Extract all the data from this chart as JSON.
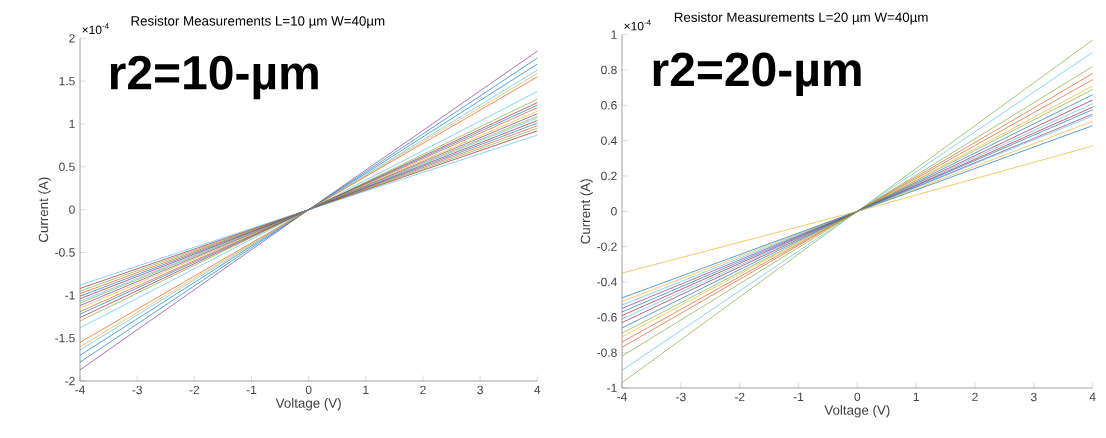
{
  "chart_data": [
    {
      "type": "line",
      "title": "Resistor Measurements L=10 µm W=40µm",
      "xlabel": "Voltage (V)",
      "ylabel": "Current (A)",
      "annotations": [
        "×10$^{-4}$",
        "r2=10-µm"
      ],
      "x": [
        -4,
        0,
        4
      ],
      "xlim": [
        -4,
        4
      ],
      "ylim": [
        -2,
        2
      ],
      "xticks": [
        -4,
        -3,
        -2,
        -1,
        0,
        1,
        2,
        3,
        4
      ],
      "yticks": [
        -2,
        -1.5,
        -1,
        -0.5,
        0,
        0.5,
        1,
        1.5,
        2
      ],
      "series": [
        {
          "color": "#7e2f8e",
          "values": [
            -1.87,
            0,
            1.85
          ]
        },
        {
          "color": "#0072bd",
          "values": [
            -1.78,
            0,
            1.77
          ]
        },
        {
          "color": "#0072bd",
          "values": [
            -1.7,
            0,
            1.7
          ]
        },
        {
          "color": "#4dbeee",
          "values": [
            -1.64,
            0,
            1.63
          ]
        },
        {
          "color": "#edb120",
          "values": [
            -1.6,
            0,
            1.59
          ]
        },
        {
          "color": "#d95319",
          "values": [
            -1.55,
            0,
            1.55
          ]
        },
        {
          "color": "#4dbeee",
          "values": [
            -1.38,
            0,
            1.38
          ]
        },
        {
          "color": "#77ac30",
          "values": [
            -1.3,
            0,
            1.29
          ]
        },
        {
          "color": "#a2142f",
          "values": [
            -1.26,
            0,
            1.25
          ]
        },
        {
          "color": "#0072bd",
          "values": [
            -1.22,
            0,
            1.22
          ]
        },
        {
          "color": "#d95319",
          "values": [
            -1.19,
            0,
            1.19
          ]
        },
        {
          "color": "#edb120",
          "values": [
            -1.15,
            0,
            1.15
          ]
        },
        {
          "color": "#7e2f8e",
          "values": [
            -1.12,
            0,
            1.12
          ]
        },
        {
          "color": "#77ac30",
          "values": [
            -1.09,
            0,
            1.09
          ]
        },
        {
          "color": "#4dbeee",
          "values": [
            -1.07,
            0,
            1.07
          ]
        },
        {
          "color": "#a2142f",
          "values": [
            -1.04,
            0,
            1.04
          ]
        },
        {
          "color": "#0072bd",
          "values": [
            -1.01,
            0,
            1.01
          ]
        },
        {
          "color": "#d95319",
          "values": [
            -0.98,
            0,
            0.98
          ]
        },
        {
          "color": "#77ac30",
          "values": [
            -0.95,
            0,
            0.95
          ]
        },
        {
          "color": "#a2142f",
          "values": [
            -0.92,
            0,
            0.92
          ]
        },
        {
          "color": "#4dbeee",
          "values": [
            -0.88,
            0,
            0.87
          ]
        }
      ]
    },
    {
      "type": "line",
      "title": "Resistor Measurements L=20  µm W=40µm",
      "xlabel": "Voltage (V)",
      "ylabel": "Current (A)",
      "annotations": [
        "×10$^{-4}$",
        "r2=20-µm"
      ],
      "x": [
        -4,
        0,
        4
      ],
      "xlim": [
        -4,
        4
      ],
      "ylim": [
        -1,
        1
      ],
      "xticks": [
        -4,
        -3,
        -2,
        -1,
        0,
        1,
        2,
        3,
        4
      ],
      "yticks": [
        -1,
        -0.8,
        -0.6,
        -0.4,
        -0.2,
        0,
        0.2,
        0.4,
        0.6,
        0.8,
        1
      ],
      "series": [
        {
          "color": "#77ac30",
          "values": [
            -0.97,
            0,
            0.97
          ]
        },
        {
          "color": "#4dbeee",
          "values": [
            -0.9,
            0,
            0.9
          ]
        },
        {
          "color": "#77ac30",
          "values": [
            -0.82,
            0,
            0.82
          ]
        },
        {
          "color": "#d95319",
          "values": [
            -0.77,
            0,
            0.78
          ]
        },
        {
          "color": "#d95319",
          "values": [
            -0.74,
            0,
            0.745
          ]
        },
        {
          "color": "#edb120",
          "values": [
            -0.71,
            0,
            0.71
          ]
        },
        {
          "color": "#77ac30",
          "values": [
            -0.69,
            0,
            0.69
          ]
        },
        {
          "color": "#0072bd",
          "values": [
            -0.66,
            0,
            0.66
          ]
        },
        {
          "color": "#a2142f",
          "values": [
            -0.63,
            0,
            0.63
          ]
        },
        {
          "color": "#4dbeee",
          "values": [
            -0.61,
            0,
            0.61
          ]
        },
        {
          "color": "#a2142f",
          "values": [
            -0.59,
            0,
            0.59
          ]
        },
        {
          "color": "#0072bd",
          "values": [
            -0.57,
            0,
            0.575
          ]
        },
        {
          "color": "#7e2f8e",
          "values": [
            -0.55,
            0,
            0.55
          ]
        },
        {
          "color": "#4dbeee",
          "values": [
            -0.53,
            0,
            0.54
          ]
        },
        {
          "color": "#edb120",
          "values": [
            -0.51,
            0,
            0.51
          ]
        },
        {
          "color": "#0072bd",
          "values": [
            -0.49,
            0,
            0.485
          ]
        },
        {
          "color": "#edb120",
          "values": [
            -0.35,
            0,
            0.37
          ]
        }
      ]
    }
  ]
}
